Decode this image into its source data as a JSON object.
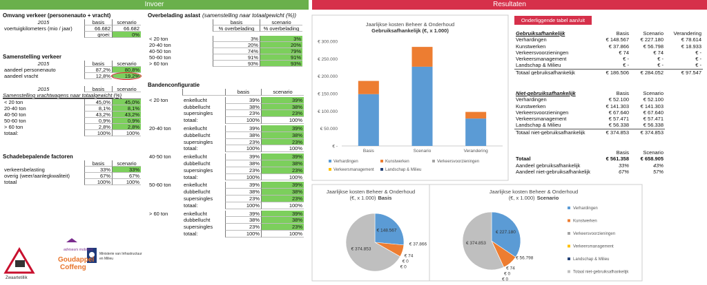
{
  "invoer": {
    "title": "Invoer",
    "omvang": {
      "title": "Omvang verkeer (personenauto + vracht)",
      "header": [
        "2015",
        "basis",
        "scenario"
      ],
      "rows": [
        [
          "voertuigkilometers (mio / jaar)",
          "66.682",
          "66.682"
        ],
        [
          "groei:",
          "0%"
        ]
      ]
    },
    "samenstelling": {
      "title": "Samenstelling verkeer",
      "header": [
        "2015",
        "basis",
        "scenario"
      ],
      "rows": [
        [
          "aandeel personenauto",
          "87,2%",
          "80,8%"
        ],
        [
          "aandeel vracht",
          "12,8%",
          "19,2%"
        ]
      ]
    },
    "vrachtwagens": {
      "header": [
        "2015",
        "basis",
        "scenario"
      ],
      "caption": "Samenstelling vrachtwagens naar totaalgewicht (%)",
      "rows": [
        [
          "< 20 ton",
          "45,0%",
          "45,0%"
        ],
        [
          "20-40 ton",
          "8,1%",
          "8,1%"
        ],
        [
          "40-50 ton",
          "43,2%",
          "43,2%"
        ],
        [
          "50-60 ton",
          "0,9%",
          "0,9%"
        ],
        [
          "> 60 ton",
          "2,8%",
          "2,8%"
        ],
        [
          "totaal:",
          "100%",
          "100%"
        ]
      ]
    },
    "schade": {
      "title": "Schadebepalende factoren",
      "header": [
        "basis",
        "scenario"
      ],
      "rows": [
        [
          "verkeersbelasting",
          "33%",
          "33%"
        ],
        [
          "overig (weer/aanlegkwaliteit)",
          "67%",
          "67%"
        ],
        [
          "totaal",
          "100%",
          "100%"
        ]
      ]
    },
    "overbelading": {
      "title": "Overbelading aslast",
      "title_note": "(samenstelling naar totaalgewicht (%))",
      "header": [
        "basis",
        "scenario"
      ],
      "subheader": [
        "% overbelading",
        "% overbelading"
      ],
      "rows": [
        [
          "< 20 ton",
          "3%",
          "3%"
        ],
        [
          "20-40 ton",
          "20%",
          "20%"
        ],
        [
          "40-50 ton",
          "74%",
          "79%"
        ],
        [
          "50-60 ton",
          "91%",
          "91%"
        ],
        [
          "> 60 ton",
          "93%",
          "93%"
        ]
      ]
    },
    "banden": {
      "title": "Bandenconfiguratie",
      "header": [
        "basis",
        "scenario"
      ],
      "groups": [
        {
          "label": "< 20 ton",
          "rows": [
            [
              "enkellucht",
              "39%",
              "39%"
            ],
            [
              "dubbellucht",
              "38%",
              "38%"
            ],
            [
              "supersingles",
              "23%",
              "23%"
            ],
            [
              "totaal:",
              "100%",
              "100%"
            ]
          ]
        },
        {
          "label": "20-40 ton",
          "rows": [
            [
              "enkellucht",
              "39%",
              "39%"
            ],
            [
              "dubbellucht",
              "38%",
              "38%"
            ],
            [
              "supersingles",
              "23%",
              "23%"
            ],
            [
              "totaal:",
              "100%",
              "100%"
            ]
          ]
        },
        {
          "label": "40-50 ton",
          "rows": [
            [
              "enkellucht",
              "39%",
              "39%"
            ],
            [
              "dubbellucht",
              "38%",
              "38%"
            ],
            [
              "supersingles",
              "23%",
              "23%"
            ],
            [
              "totaal:",
              "100%",
              "100%"
            ]
          ]
        },
        {
          "label": "50-60 ton",
          "rows": [
            [
              "enkellucht",
              "39%",
              "39%"
            ],
            [
              "dubbellucht",
              "38%",
              "38%"
            ],
            [
              "supersingles",
              "23%",
              "23%"
            ],
            [
              "totaal:",
              "100%",
              "100%"
            ]
          ]
        },
        {
          "label": "> 60 ton",
          "rows": [
            [
              "enkellucht",
              "39%",
              "39%"
            ],
            [
              "dubbellucht",
              "38%",
              "38%"
            ],
            [
              "supersingles",
              "23%",
              "23%"
            ],
            [
              "totaal:",
              "100%",
              "100%"
            ]
          ]
        }
      ]
    }
  },
  "resultaten": {
    "title": "Resultaten",
    "bar_chart": {
      "type": "bar",
      "stacked": true,
      "title": "Jaarlijkse kosten Beheer & Onderhoud",
      "subtitle": "Gebruiksafhankelijk (€, x 1.000)",
      "categories": [
        "Basis",
        "Scenario",
        "Verandering"
      ],
      "series": [
        {
          "name": "Verhardingen",
          "color": "#5b9bd5",
          "values": [
            148567,
            227180,
            78614
          ]
        },
        {
          "name": "Kunstwerken",
          "color": "#ed7d31",
          "values": [
            37866,
            56798,
            18933
          ]
        },
        {
          "name": "Verkeersvoorzieningen",
          "color": "#a5a5a5",
          "values": [
            74,
            74,
            0
          ]
        },
        {
          "name": "Verkeersmanagement",
          "color": "#ffc000",
          "values": [
            0,
            0,
            0
          ]
        },
        {
          "name": "Landschap & Milieu",
          "color": "#264478",
          "values": [
            0,
            0,
            0
          ]
        }
      ],
      "ylim": [
        0,
        300000
      ],
      "yticks": [
        {
          "value": 0,
          "label": "€ -"
        },
        {
          "value": 50000,
          "label": "€ 50.000"
        },
        {
          "value": 100000,
          "label": "€ 100.000"
        },
        {
          "value": 150000,
          "label": "€ 150.000"
        },
        {
          "value": 200000,
          "label": "€ 200.000"
        },
        {
          "value": 250000,
          "label": "€ 250.000"
        },
        {
          "value": 300000,
          "label": "€ 300.000"
        }
      ],
      "grid": false,
      "legend": "bottom"
    },
    "tabel": {
      "button": "Onderliggende tabel aan/uit",
      "gebruik": {
        "header": [
          "Gebruiksafhankelijk",
          "Basis",
          "Scenario",
          "Verandering"
        ],
        "rows": [
          [
            "Verhardingen",
            "€ 148.567",
            "€ 227.180",
            "€ 78.614"
          ],
          [
            "Kunstwerken",
            "€ 37.866",
            "€ 56.798",
            "€ 18.933"
          ],
          [
            "Verkeersvoorzieningen",
            "€ 74",
            "€ 74",
            "€ -"
          ],
          [
            "Verkeersmanagement",
            "€ -",
            "€ -",
            "€ -"
          ],
          [
            "Landschap & Milieu",
            "€ -",
            "€ -",
            "€ -"
          ],
          [
            "Totaal gebruiksafhankelijk",
            "€ 186.506",
            "€ 284.052",
            "€ 97.547"
          ]
        ]
      },
      "niet": {
        "header": [
          "Niet-gebruiksafhankelijk",
          "Basis",
          "Scenario"
        ],
        "rows": [
          [
            "Verhardingen",
            "€ 52.100",
            "€ 52.100"
          ],
          [
            "Kunstwerken",
            "€ 141.303",
            "€ 141.303"
          ],
          [
            "Verkeersvoorzieningen",
            "€ 67.640",
            "€ 67.640"
          ],
          [
            "Verkeersmanagement",
            "€ 57.471",
            "€ 57.471"
          ],
          [
            "Landschap & Milieu",
            "€ 56.338",
            "€ 56.338"
          ],
          [
            "Totaal niet-gebruiksafhankelijk",
            "€ 374.853",
            "€ 374.853"
          ]
        ]
      },
      "totaal": {
        "header": [
          "Basis",
          "Scenario"
        ],
        "rows": [
          [
            "Totaal",
            "€ 561.358",
            "€ 658.905"
          ],
          [
            "Aandeel gebruiksafhankelijk",
            "33%",
            "43%"
          ],
          [
            "Aandeel niet-gebruiksafhankelijk",
            "67%",
            "57%"
          ]
        ]
      }
    },
    "pie_basis": {
      "type": "pie",
      "title": "Jaarlijkse kosten Beheer & Onderhoud",
      "subtitle": "(€, x 1.000)",
      "subtitle_bold": "Basis",
      "categories": [
        "Verhardingen",
        "Kunstwerken",
        "Verkeersvoorzieningen",
        "Verkeersmanagement",
        "Landschap & Milieu",
        "Totaal niet-gebruiksafhankelijk"
      ],
      "colors": [
        "#5b9bd5",
        "#ed7d31",
        "#a5a5a5",
        "#ffc000",
        "#264478",
        "#bfbfbf"
      ],
      "values": [
        148567,
        37866,
        74,
        0,
        0,
        374853
      ],
      "value_labels": [
        "€ 148.567",
        "€ 37.866",
        "€ 74",
        "€ 0",
        "€ 0",
        "€ 374.853"
      ],
      "legend": false
    },
    "pie_scenario": {
      "type": "pie",
      "title": "Jaarlijkse kosten Beheer & Onderhoud",
      "subtitle": "(€, x 1.000)",
      "subtitle_bold": "Scenario",
      "categories": [
        "Verhardingen",
        "Kunstwerken",
        "Verkeersvoorzieningen",
        "Verkeersmanagement",
        "Landschap & Milieu",
        "Totaal niet-gebruiksafhankelijk"
      ],
      "colors": [
        "#5b9bd5",
        "#ed7d31",
        "#a5a5a5",
        "#ffc000",
        "#264478",
        "#bfbfbf"
      ],
      "values": [
        227180,
        56798,
        74,
        0,
        0,
        374853
      ],
      "value_labels": [
        "€ 227.180",
        "€ 56.798",
        "€ 74",
        "€ 0",
        "€ 0",
        "€ 374.853"
      ],
      "legend": true
    }
  },
  "logos": {
    "zwaartetillik": "Zwaartetillik",
    "goudappel_tag": "adviseurs mobiliteit",
    "goudappel": [
      "Goudappel",
      "Coffeng"
    ],
    "ministerie": [
      "Ministerie van Infrastructuur",
      "en Milieu"
    ]
  }
}
